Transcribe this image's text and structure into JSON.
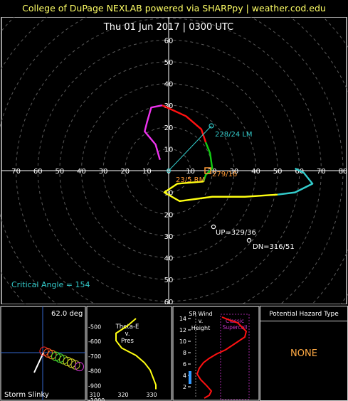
{
  "header": {
    "banner": "College of DuPage NEXLAB powered via SHARPpy | weather.cod.edu"
  },
  "colors": {
    "banner": "#ffff66",
    "ring": "#5a5a5a",
    "axis": "#ffffff",
    "cyan": "#33cccc",
    "orange": "#ff9933",
    "critical": "#33cccc",
    "hazard": "#ffaa44"
  },
  "hodograph": {
    "title": "Thu 01 Jun 2017 | 0300 UTC",
    "x_ticks": [
      "80",
      "70",
      "60",
      "50",
      "40",
      "30",
      "20",
      "10",
      "0",
      "10",
      "20",
      "30",
      "40",
      "50",
      "60",
      "70",
      "80"
    ],
    "y_ticks_up": [
      "10",
      "20",
      "30",
      "40",
      "50",
      "60"
    ],
    "y_ticks_down": [
      "10",
      "20",
      "30",
      "40",
      "50",
      "60"
    ],
    "lm_label": "228/24 LM",
    "rm_label": "23/5 RM",
    "mean_label": "279/16",
    "up_label": "UP=329/36",
    "dn_label": "DN=316/51",
    "critical_angle": "Critical Angle = 154"
  },
  "chart_data": [
    {
      "type": "line",
      "title": "Thu 01 Jun 2017 | 0300 UTC",
      "xlabel": "",
      "ylabel": "",
      "xlim": [
        -80,
        80
      ],
      "ylim": [
        -70,
        70
      ],
      "grid": true,
      "series": [
        {
          "color": "#ff1111",
          "points": [
            [
              17,
              13
            ],
            [
              15,
              19
            ],
            [
              8,
              25
            ],
            [
              -3,
              30
            ]
          ]
        },
        {
          "color": "#11cc11",
          "points": [
            [
              17,
              13
            ],
            [
              19,
              8
            ],
            [
              20,
              1
            ],
            [
              17,
              -2
            ],
            [
              16,
              -5
            ]
          ]
        },
        {
          "color": "#ee33ee",
          "points": [
            [
              -3,
              30
            ],
            [
              -8,
              29
            ],
            [
              -10,
              22
            ],
            [
              -11,
              18
            ],
            [
              -6,
              12
            ],
            [
              -4,
              5
            ]
          ]
        },
        {
          "color": "#ffff11",
          "points": [
            [
              16,
              -5
            ],
            [
              4,
              -6
            ],
            [
              -2,
              -10
            ],
            [
              5,
              -14
            ],
            [
              20,
              -12
            ],
            [
              35,
              -12
            ],
            [
              50,
              -11
            ]
          ]
        },
        {
          "color": "#33cccc",
          "points": [
            [
              50,
              -11
            ],
            [
              58,
              -10
            ],
            [
              66,
              -6
            ],
            [
              62,
              -1
            ],
            [
              58,
              1
            ]
          ]
        }
      ],
      "markers": [
        {
          "name": "LM",
          "x": 20,
          "y": 17
        },
        {
          "name": "RM",
          "x": 17,
          "y": -2
        },
        {
          "name": "UP",
          "x": 21,
          "y": -30
        },
        {
          "name": "DN",
          "x": 37,
          "y": -37
        }
      ]
    },
    {
      "type": "line",
      "title": "Theta-E v. Pres",
      "y_ticks": [
        "500",
        "600",
        "700",
        "800",
        "900",
        "1000"
      ],
      "x_ticks": [
        "310",
        "320",
        "330"
      ],
      "ylim": [
        1000,
        450
      ],
      "xlim": [
        310,
        335
      ],
      "series": [
        {
          "color": "#ffff11",
          "x": [
            325,
            322,
            318,
            318,
            320,
            325,
            328,
            330,
            331,
            332,
            332
          ],
          "y": [
            450,
            500,
            550,
            600,
            650,
            700,
            750,
            800,
            850,
            900,
            930
          ]
        }
      ]
    },
    {
      "type": "line",
      "title": "SR Wind v. Height",
      "y_ticks": [
        "2",
        "4",
        "6",
        "8",
        "10",
        "12",
        "14"
      ],
      "ylim": [
        0,
        15
      ],
      "series": [
        {
          "color": "#ff1111"
        }
      ]
    }
  ],
  "slinky": {
    "angle": "62.0 deg",
    "label": "Storm Slinky"
  },
  "theta": {
    "title1": "Theta-E",
    "title2": "v.",
    "title3": "Pres"
  },
  "srwind": {
    "title1": "SR Wind",
    "title2": "v.",
    "title3": "Height",
    "classic1": "Classic",
    "classic2": "Supercell"
  },
  "hazard": {
    "title": "Potential Hazard Type",
    "value": "NONE"
  }
}
